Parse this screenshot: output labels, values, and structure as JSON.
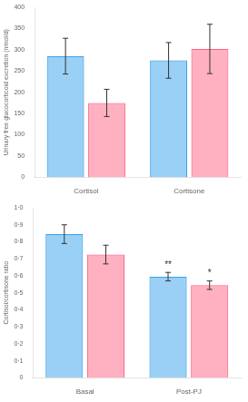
{
  "chart_data": [
    {
      "type": "bar",
      "ylabel": "Urinary free glucocorticoid excretion (nmol/d)",
      "categories": [
        "Cortisol",
        "Cortisone"
      ],
      "series": [
        {
          "values": [
            285,
            275
          ],
          "errors": [
            42,
            42
          ]
        },
        {
          "values": [
            175,
            302
          ],
          "errors": [
            32,
            58
          ]
        }
      ],
      "ylim": [
        0,
        400
      ],
      "yticks": [
        0,
        50,
        100,
        150,
        200,
        250,
        300,
        350,
        400
      ],
      "grid": false
    },
    {
      "type": "bar",
      "ylabel": "Cortisol/cortisone ratio",
      "categories": [
        "Basal",
        "Post-PJ"
      ],
      "series": [
        {
          "values": [
            0.845,
            0.595
          ],
          "errors": [
            0.055,
            0.025
          ],
          "annotations": [
            null,
            "**"
          ]
        },
        {
          "values": [
            0.725,
            0.545
          ],
          "errors": [
            0.055,
            0.025
          ],
          "annotations": [
            null,
            "*"
          ]
        }
      ],
      "ylim": [
        0,
        1.0
      ],
      "yticks": [
        0,
        {
          "value": 0.1,
          "label": "0·1"
        },
        {
          "value": 0.2,
          "label": "0·2"
        },
        {
          "value": 0.3,
          "label": "0·3"
        },
        {
          "value": 0.4,
          "label": "0·4"
        },
        {
          "value": 0.5,
          "label": "0·5"
        },
        {
          "value": 0.6,
          "label": "0·6"
        },
        {
          "value": 0.7,
          "label": "0·7"
        },
        {
          "value": 0.8,
          "label": "0·8"
        },
        {
          "value": 0.9,
          "label": "0·9"
        },
        {
          "value": 1.0,
          "label": "1·0"
        }
      ],
      "grid": false
    }
  ]
}
